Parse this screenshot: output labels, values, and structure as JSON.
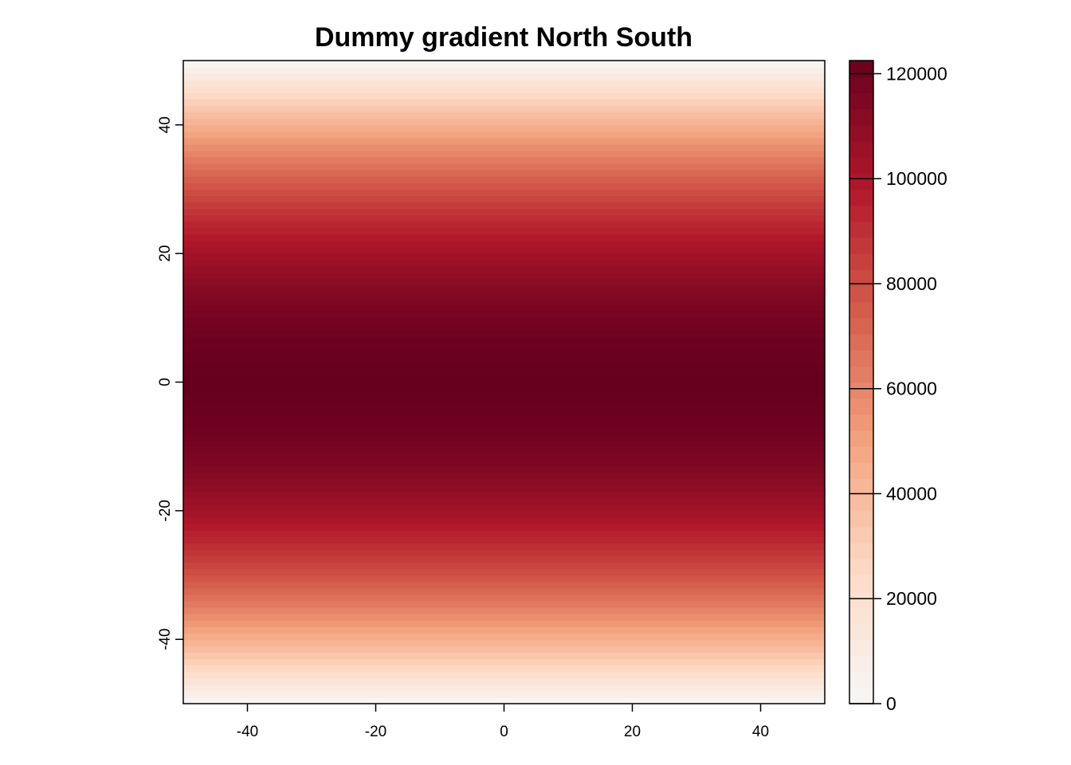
{
  "chart_data": {
    "type": "heatmap",
    "title": "Dummy gradient North South",
    "xlabel": "",
    "ylabel": "",
    "xlim": [
      -50,
      50
    ],
    "ylim": [
      -50,
      50
    ],
    "x_ticks": [
      -40,
      -20,
      0,
      20,
      40
    ],
    "y_ticks": [
      -40,
      -20,
      0,
      20,
      40
    ],
    "x_tick_labels": [
      "-40",
      "-20",
      "0",
      "20",
      "40"
    ],
    "y_tick_labels": [
      "-40",
      "-20",
      "0",
      "20",
      "40"
    ],
    "grid": false,
    "value_range": [
      0,
      122500
    ],
    "gradient_direction": "north-south",
    "gradient_formula": "value = 122500 - 49 * y^2",
    "colorbar": {
      "position": "right",
      "ticks": [
        0,
        20000,
        40000,
        60000,
        80000,
        100000,
        120000
      ],
      "tick_labels": [
        "0",
        "20000",
        "40000",
        "60000",
        "80000",
        "100000",
        "120000"
      ],
      "palette": [
        "#f7f7f7",
        "#fddbc7",
        "#f4a582",
        "#d6604d",
        "#b2182b",
        "#67001f"
      ]
    }
  }
}
